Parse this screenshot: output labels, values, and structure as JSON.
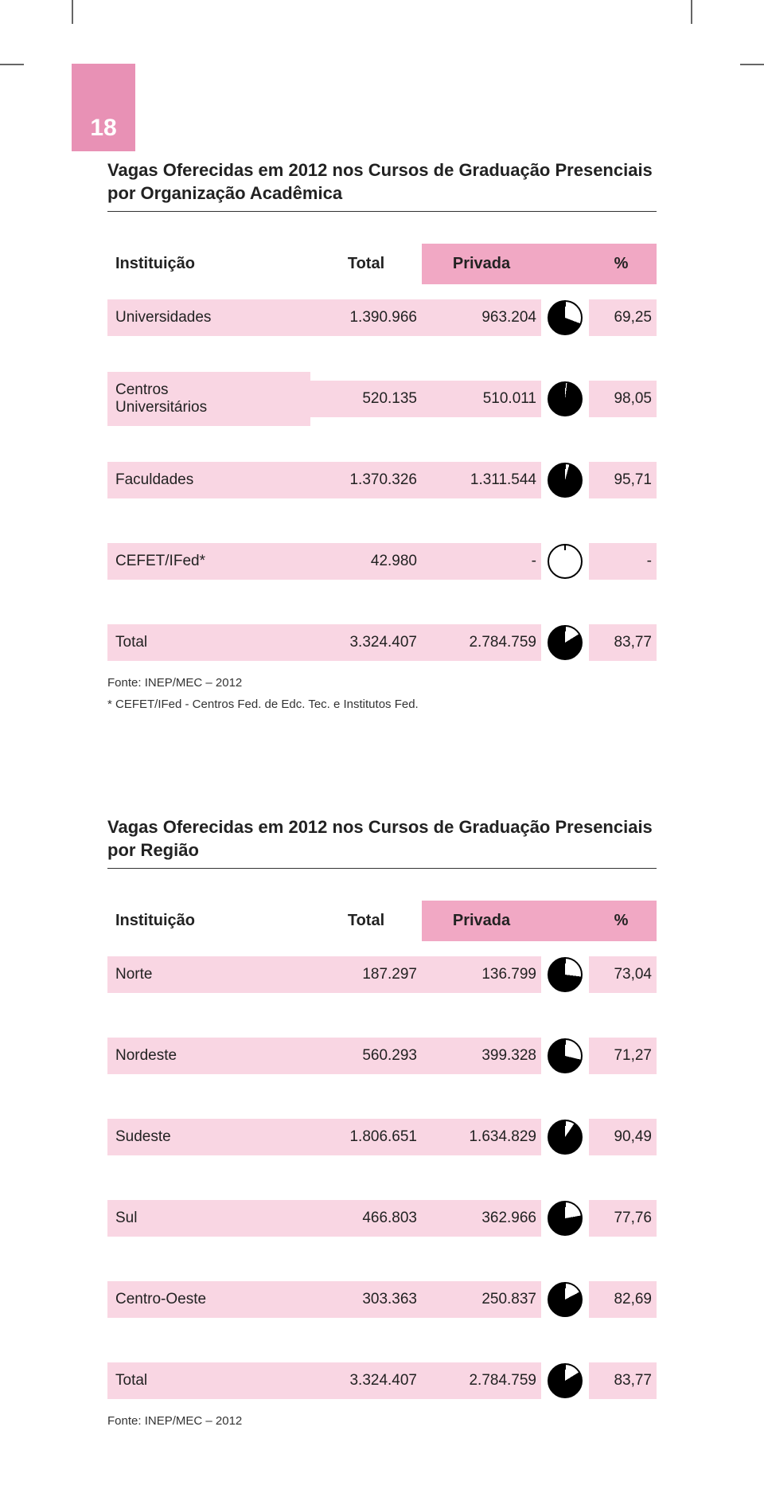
{
  "page_number": "18",
  "colors": {
    "tab_bg": "#e891b5",
    "header_bg": "#f1a8c4",
    "row_bg": "#f9d6e3",
    "pie_fill": "#000000",
    "pie_empty": "#ffffff",
    "pie_border": "#000000",
    "text": "#222222"
  },
  "section1": {
    "title": "Vagas Oferecidas em 2012 nos Cursos de Graduação Presenciais por Organização Acadêmica",
    "header": {
      "c1": "Instituição",
      "c2": "Total",
      "c3": "Privada",
      "c4": "%"
    },
    "rows": [
      {
        "label": "Universidades",
        "total": "1.390.966",
        "privada": "963.204",
        "pct": "69,25",
        "pie_pct": 69.25
      },
      {
        "label": "Centros\nUniversitários",
        "total": "520.135",
        "privada": "510.011",
        "pct": "98,05",
        "pie_pct": 98.05
      },
      {
        "label": "Faculdades",
        "total": "1.370.326",
        "privada": "1.311.544",
        "pct": "95,71",
        "pie_pct": 95.71
      },
      {
        "label": "CEFET/IFed*",
        "total": "42.980",
        "privada": "-",
        "pct": "-",
        "pie_pct": 0
      },
      {
        "label": "Total",
        "total": "3.324.407",
        "privada": "2.784.759",
        "pct": "83,77",
        "pie_pct": 83.77
      }
    ],
    "footnote1": "Fonte: INEP/MEC – 2012",
    "footnote2": "* CEFET/IFed - Centros Fed. de Edc. Tec. e Institutos Fed."
  },
  "section2": {
    "title": "Vagas Oferecidas em 2012 nos Cursos de Graduação Presenciais por Região",
    "header": {
      "c1": "Instituição",
      "c2": "Total",
      "c3": "Privada",
      "c4": "%"
    },
    "rows": [
      {
        "label": "Norte",
        "total": "187.297",
        "privada": "136.799",
        "pct": "73,04",
        "pie_pct": 73.04
      },
      {
        "label": "Nordeste",
        "total": "560.293",
        "privada": "399.328",
        "pct": "71,27",
        "pie_pct": 71.27
      },
      {
        "label": "Sudeste",
        "total": "1.806.651",
        "privada": "1.634.829",
        "pct": "90,49",
        "pie_pct": 90.49
      },
      {
        "label": "Sul",
        "total": "466.803",
        "privada": "362.966",
        "pct": "77,76",
        "pie_pct": 77.76
      },
      {
        "label": "Centro-Oeste",
        "total": "303.363",
        "privada": "250.837",
        "pct": "82,69",
        "pie_pct": 82.69
      },
      {
        "label": "Total",
        "total": "3.324.407",
        "privada": "2.784.759",
        "pct": "83,77",
        "pie_pct": 83.77
      }
    ],
    "footnote1": "Fonte: INEP/MEC – 2012"
  }
}
